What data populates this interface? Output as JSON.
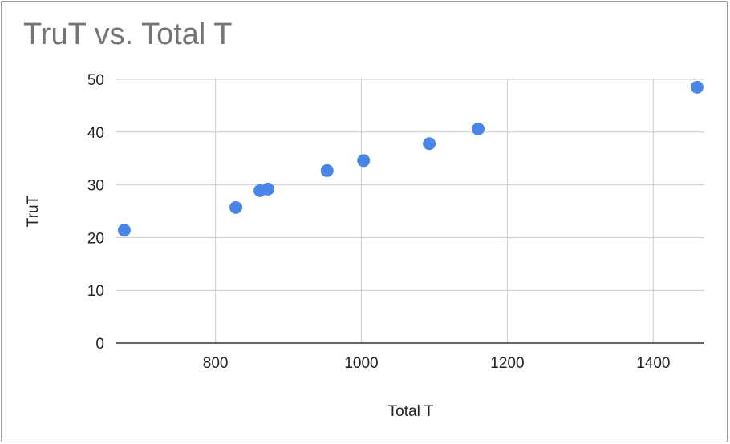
{
  "chart_data": {
    "type": "scatter",
    "title": "TruT vs. Total T",
    "xlabel": "Total T",
    "ylabel": "TruT",
    "xlim": [
      663,
      1470
    ],
    "ylim": [
      0,
      50
    ],
    "x_ticks": [
      800,
      1000,
      1200,
      1400
    ],
    "y_ticks": [
      0,
      10,
      20,
      30,
      40,
      50
    ],
    "grid": true,
    "legend": "none",
    "series": [
      {
        "color": "#4a86e8",
        "points": [
          {
            "x": 675,
            "y": 21.4
          },
          {
            "x": 828,
            "y": 25.7
          },
          {
            "x": 861,
            "y": 28.9
          },
          {
            "x": 872,
            "y": 29.2
          },
          {
            "x": 953,
            "y": 32.7
          },
          {
            "x": 1003,
            "y": 34.6
          },
          {
            "x": 1093,
            "y": 37.8
          },
          {
            "x": 1160,
            "y": 40.6
          },
          {
            "x": 1460,
            "y": 48.5
          }
        ]
      }
    ],
    "colors": {
      "grid": "#cccccc",
      "axis": "#333333",
      "point": "#4a86e8",
      "title": "#757575"
    }
  }
}
